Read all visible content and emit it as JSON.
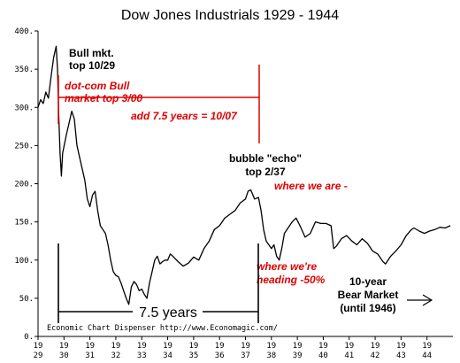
{
  "chart_data": {
    "type": "line",
    "title": "Dow Jones Industrials 1929 -  1944",
    "credit": "Economic Chart Dispenser  http://www.Economagic.com/",
    "ylim": [
      0,
      400
    ],
    "xlim": [
      1929.0,
      1945.0
    ],
    "y_ticks": [
      "0.",
      "50.",
      "100.",
      "150.",
      "200.",
      "250.",
      "300.",
      "350.",
      "400."
    ],
    "x_ticks": [
      {
        "top": "19",
        "bottom": "29"
      },
      {
        "top": "19",
        "bottom": "30"
      },
      {
        "top": "19",
        "bottom": "31"
      },
      {
        "top": "19",
        "bottom": "32"
      },
      {
        "top": "19",
        "bottom": "33"
      },
      {
        "top": "19",
        "bottom": "34"
      },
      {
        "top": "19",
        "bottom": "35"
      },
      {
        "top": "19",
        "bottom": "36"
      },
      {
        "top": "19",
        "bottom": "37"
      },
      {
        "top": "19",
        "bottom": "38"
      },
      {
        "top": "19",
        "bottom": "39"
      },
      {
        "top": "19",
        "bottom": "40"
      },
      {
        "top": "19",
        "bottom": "41"
      },
      {
        "top": "19",
        "bottom": "42"
      },
      {
        "top": "19",
        "bottom": "43"
      },
      {
        "top": "19",
        "bottom": "44"
      }
    ],
    "series": [
      {
        "color": "#000000",
        "points": [
          [
            1929.0,
            300
          ],
          [
            1929.1,
            310
          ],
          [
            1929.2,
            305
          ],
          [
            1929.3,
            320
          ],
          [
            1929.4,
            312
          ],
          [
            1929.5,
            340
          ],
          [
            1929.6,
            365
          ],
          [
            1929.7,
            380
          ],
          [
            1929.75,
            350
          ],
          [
            1929.8,
            290
          ],
          [
            1929.85,
            240
          ],
          [
            1929.9,
            210
          ],
          [
            1929.95,
            240
          ],
          [
            1930.1,
            265
          ],
          [
            1930.2,
            280
          ],
          [
            1930.3,
            295
          ],
          [
            1930.4,
            285
          ],
          [
            1930.5,
            250
          ],
          [
            1930.6,
            235
          ],
          [
            1930.7,
            220
          ],
          [
            1930.8,
            205
          ],
          [
            1930.9,
            180
          ],
          [
            1931.0,
            170
          ],
          [
            1931.1,
            185
          ],
          [
            1931.2,
            190
          ],
          [
            1931.3,
            165
          ],
          [
            1931.4,
            145
          ],
          [
            1931.5,
            140
          ],
          [
            1931.6,
            135
          ],
          [
            1931.7,
            120
          ],
          [
            1931.8,
            100
          ],
          [
            1931.9,
            85
          ],
          [
            1932.0,
            80
          ],
          [
            1932.1,
            78
          ],
          [
            1932.2,
            70
          ],
          [
            1932.3,
            60
          ],
          [
            1932.4,
            50
          ],
          [
            1932.5,
            42
          ],
          [
            1932.6,
            65
          ],
          [
            1932.7,
            72
          ],
          [
            1932.8,
            68
          ],
          [
            1932.9,
            60
          ],
          [
            1933.0,
            62
          ],
          [
            1933.1,
            55
          ],
          [
            1933.2,
            50
          ],
          [
            1933.3,
            70
          ],
          [
            1933.4,
            85
          ],
          [
            1933.5,
            100
          ],
          [
            1933.6,
            105
          ],
          [
            1933.7,
            95
          ],
          [
            1933.8,
            98
          ],
          [
            1933.9,
            100
          ],
          [
            1934.0,
            100
          ],
          [
            1934.1,
            108
          ],
          [
            1934.2,
            105
          ],
          [
            1934.4,
            98
          ],
          [
            1934.6,
            92
          ],
          [
            1934.8,
            96
          ],
          [
            1935.0,
            104
          ],
          [
            1935.2,
            100
          ],
          [
            1935.4,
            115
          ],
          [
            1935.6,
            125
          ],
          [
            1935.8,
            140
          ],
          [
            1936.0,
            145
          ],
          [
            1936.2,
            155
          ],
          [
            1936.4,
            160
          ],
          [
            1936.6,
            165
          ],
          [
            1936.8,
            175
          ],
          [
            1937.0,
            180
          ],
          [
            1937.1,
            190
          ],
          [
            1937.2,
            192
          ],
          [
            1937.35,
            180
          ],
          [
            1937.5,
            182
          ],
          [
            1937.6,
            165
          ],
          [
            1937.7,
            140
          ],
          [
            1937.8,
            125
          ],
          [
            1937.9,
            120
          ],
          [
            1938.0,
            115
          ],
          [
            1938.1,
            120
          ],
          [
            1938.2,
            105
          ],
          [
            1938.3,
            100
          ],
          [
            1938.4,
            115
          ],
          [
            1938.5,
            135
          ],
          [
            1938.6,
            140
          ],
          [
            1938.8,
            150
          ],
          [
            1938.95,
            155
          ],
          [
            1939.1,
            145
          ],
          [
            1939.3,
            130
          ],
          [
            1939.5,
            135
          ],
          [
            1939.7,
            150
          ],
          [
            1939.9,
            148
          ],
          [
            1940.1,
            148
          ],
          [
            1940.3,
            145
          ],
          [
            1940.4,
            115
          ],
          [
            1940.5,
            118
          ],
          [
            1940.7,
            128
          ],
          [
            1940.9,
            132
          ],
          [
            1941.1,
            125
          ],
          [
            1941.3,
            120
          ],
          [
            1941.5,
            128
          ],
          [
            1941.7,
            122
          ],
          [
            1941.9,
            112
          ],
          [
            1942.1,
            108
          ],
          [
            1942.3,
            98
          ],
          [
            1942.4,
            95
          ],
          [
            1942.6,
            105
          ],
          [
            1942.8,
            112
          ],
          [
            1943.0,
            120
          ],
          [
            1943.2,
            132
          ],
          [
            1943.4,
            140
          ],
          [
            1943.5,
            142
          ],
          [
            1943.7,
            138
          ],
          [
            1943.9,
            135
          ],
          [
            1944.1,
            138
          ],
          [
            1944.3,
            140
          ],
          [
            1944.5,
            143
          ],
          [
            1944.7,
            142
          ],
          [
            1944.9,
            145
          ]
        ]
      }
    ],
    "annotations": {
      "bull_top": [
        "Bull mkt.",
        "top 10/29"
      ],
      "dotcom": [
        "dot-com Bull",
        "market top 3/00"
      ],
      "add_years": "add 7.5 years = 10/07",
      "echo": [
        "bubble \"echo\"",
        "top 2/37"
      ],
      "where_we_are": "where we are -",
      "heading": [
        "where we're",
        "heading -50%"
      ],
      "span_label": "7.5 years",
      "bear_market": [
        "10-year",
        "Bear Market",
        "(until 1946)"
      ]
    },
    "colors": {
      "line": "#000000",
      "annotation_red": "#e00000"
    }
  }
}
